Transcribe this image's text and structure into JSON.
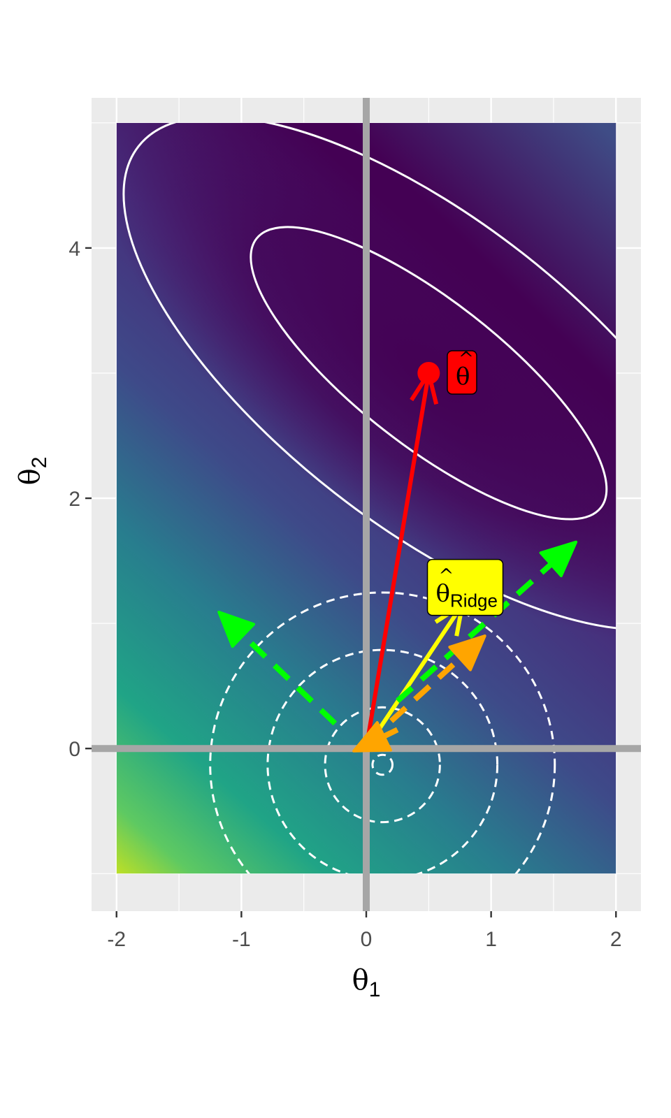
{
  "chart_data": {
    "type": "contour",
    "xlabel": "θ1",
    "ylabel": "θ2",
    "xlim": [
      -2.2,
      2.2
    ],
    "ylim": [
      -1.3,
      5.2
    ],
    "x_ticks": [
      -2,
      -1,
      0,
      1,
      2
    ],
    "y_ticks": [
      0,
      2,
      4
    ],
    "heatmap": {
      "x_range": [
        -2,
        2
      ],
      "y_range": [
        -1,
        5
      ],
      "colormap": "viridis",
      "minimum": [
        0.5,
        3.0
      ]
    },
    "loss_contours": {
      "center": [
        0.5,
        3.0
      ],
      "color": "#ffffff",
      "style": "solid",
      "ellipses": [
        {
          "major_semi": 1.75,
          "minor_semi": 0.58,
          "angle_deg": -38
        },
        {
          "major_semi": 2.95,
          "minor_semi": 1.22,
          "angle_deg": -38
        }
      ]
    },
    "penalty_contours": {
      "center": [
        0.13,
        -0.13
      ],
      "color": "#ffffff",
      "style": "dashed",
      "radii": [
        0.08,
        0.46,
        0.92,
        1.38
      ]
    },
    "reference_lines": {
      "x": 0,
      "y": 0,
      "color": "#a6a6a6"
    },
    "arrows": [
      {
        "name": "theta-hat-arrow",
        "from": [
          0,
          0
        ],
        "to": [
          0.5,
          3.0
        ],
        "color": "#ff0000",
        "style": "solid"
      },
      {
        "name": "ridge-arrow",
        "from": [
          0,
          0
        ],
        "to": [
          0.77,
          1.15
        ],
        "color": "#ffff00",
        "style": "solid"
      },
      {
        "name": "green-arrow-ne",
        "from": [
          0.25,
          0.38
        ],
        "to": [
          1.68,
          1.65
        ],
        "color": "#00ff00",
        "style": "dashed"
      },
      {
        "name": "green-arrow-nw",
        "from": [
          -0.25,
          0.2
        ],
        "to": [
          -1.18,
          1.09
        ],
        "color": "#00ff00",
        "style": "dashed"
      },
      {
        "name": "orange-arrow-ne",
        "from": [
          0.2,
          0.22
        ],
        "to": [
          0.95,
          0.9
        ],
        "color": "#ffa500",
        "style": "dashed"
      },
      {
        "name": "orange-arrow-sw",
        "from": [
          0.25,
          0.15
        ],
        "to": [
          -0.1,
          -0.02
        ],
        "color": "#ffa500",
        "style": "dashed"
      }
    ],
    "points": [
      {
        "name": "theta-hat-point",
        "x": 0.5,
        "y": 3.0,
        "color": "#ff0000"
      },
      {
        "name": "ridge-point",
        "x": 0.77,
        "y": 1.15,
        "color": "#ffff00"
      }
    ],
    "labels": [
      {
        "name": "theta-hat-label",
        "symbol": "θ",
        "hat": "^",
        "subscript": "",
        "anchor": [
          0.75,
          3.0
        ],
        "fill": "#ff0000"
      },
      {
        "name": "ridge-label",
        "symbol": "θ",
        "hat": "^",
        "subscript": "Ridge",
        "anchor": [
          0.8,
          1.5
        ],
        "fill": "#ffff00"
      }
    ]
  }
}
